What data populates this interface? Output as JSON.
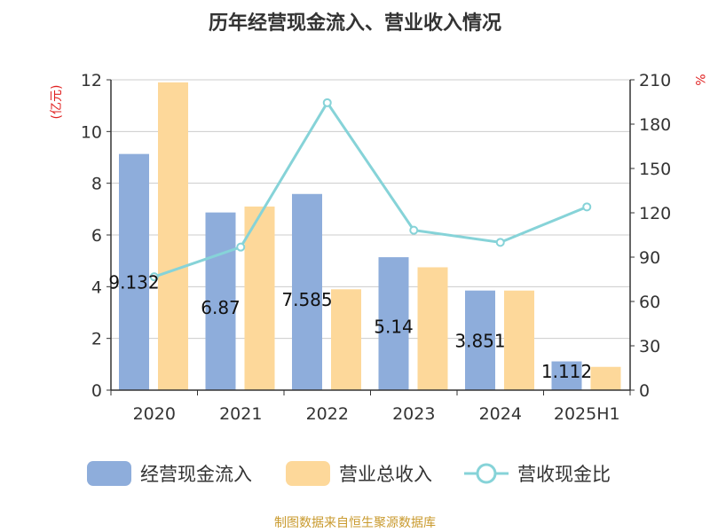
{
  "title": "历年经营现金流入、营业收入情况",
  "y_left_unit": "(亿元)",
  "y_right_unit": "%",
  "source": "制图数据来自恒生聚源数据库",
  "colors": {
    "cash_inflow": "#8eaddb",
    "revenue": "#fdd89a",
    "ratio": "#86d3d8"
  },
  "chart_data": {
    "type": "bar",
    "categories": [
      "2020",
      "2021",
      "2022",
      "2023",
      "2024",
      "2025H1"
    ],
    "series": [
      {
        "name": "经营现金流入",
        "type": "bar",
        "axis": "left",
        "values": [
          9.132,
          6.87,
          7.585,
          5.14,
          3.851,
          1.112
        ],
        "labels": [
          "9.132",
          "6.87",
          "7.585",
          "5.14",
          "3.851",
          "1.112"
        ]
      },
      {
        "name": "营业总收入",
        "type": "bar",
        "axis": "left",
        "values": [
          11.9,
          7.1,
          3.9,
          4.75,
          3.85,
          0.9
        ]
      },
      {
        "name": "营收现金比",
        "type": "line",
        "axis": "right",
        "values": [
          76.7,
          96.8,
          194.5,
          108.2,
          100.0,
          124.0
        ]
      }
    ],
    "y_left": {
      "lim": [
        0,
        12
      ],
      "ticks": [
        "0",
        "2",
        "4",
        "6",
        "8",
        "10",
        "12"
      ]
    },
    "y_right": {
      "lim": [
        0,
        210
      ],
      "ticks": [
        "0",
        "30",
        "60",
        "90",
        "120",
        "150",
        "180",
        "210"
      ]
    },
    "grid": true,
    "legend": "bottom"
  }
}
